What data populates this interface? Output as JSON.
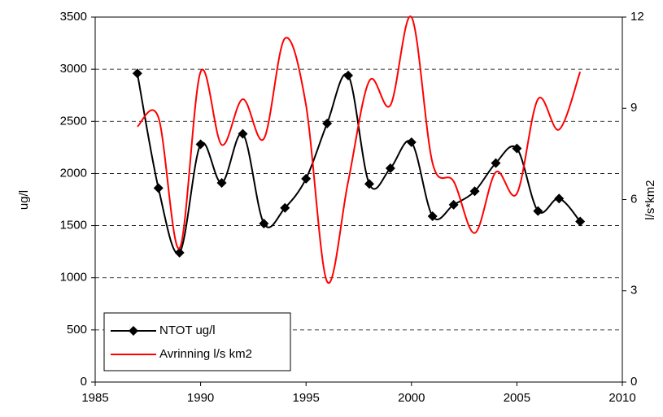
{
  "chart_data": {
    "type": "line",
    "x": [
      1987,
      1988,
      1989,
      1990,
      1991,
      1992,
      1993,
      1994,
      1995,
      1996,
      1997,
      1998,
      1999,
      2000,
      2001,
      2002,
      2003,
      2004,
      2005,
      2006,
      2007,
      2008
    ],
    "series": [
      {
        "name": "NTOT ug/l",
        "color": "#000000",
        "marker": "diamond",
        "axis": "y",
        "values": [
          2960,
          1860,
          1240,
          2280,
          1910,
          2380,
          1520,
          1670,
          1950,
          2480,
          2940,
          1900,
          2050,
          2300,
          1590,
          1700,
          1830,
          2100,
          2240,
          1640,
          1760,
          1540
        ]
      },
      {
        "name": "Avrinning l/s km2",
        "color": "#ff0000",
        "axis": "y2",
        "values": [
          8.4,
          8.7,
          4.4,
          10.2,
          7.8,
          9.3,
          8.0,
          11.3,
          9.1,
          3.3,
          6.6,
          9.9,
          9.1,
          12.0,
          7.2,
          6.6,
          4.9,
          6.9,
          6.2,
          9.3,
          8.3,
          10.2
        ]
      }
    ],
    "xlim": [
      1985,
      2010
    ],
    "xticks": [
      1985,
      1990,
      1995,
      2000,
      2005,
      2010
    ],
    "ylim": [
      0,
      3500
    ],
    "yticks": [
      0,
      500,
      1000,
      1500,
      2000,
      2500,
      3000,
      3500
    ],
    "y2lim": [
      0,
      12
    ],
    "y2ticks": [
      0,
      3,
      6,
      9,
      12
    ],
    "ylabel": "ug/l",
    "y2label": "l/s*km2",
    "grid": true,
    "legend": "lower left",
    "smooth": true
  }
}
